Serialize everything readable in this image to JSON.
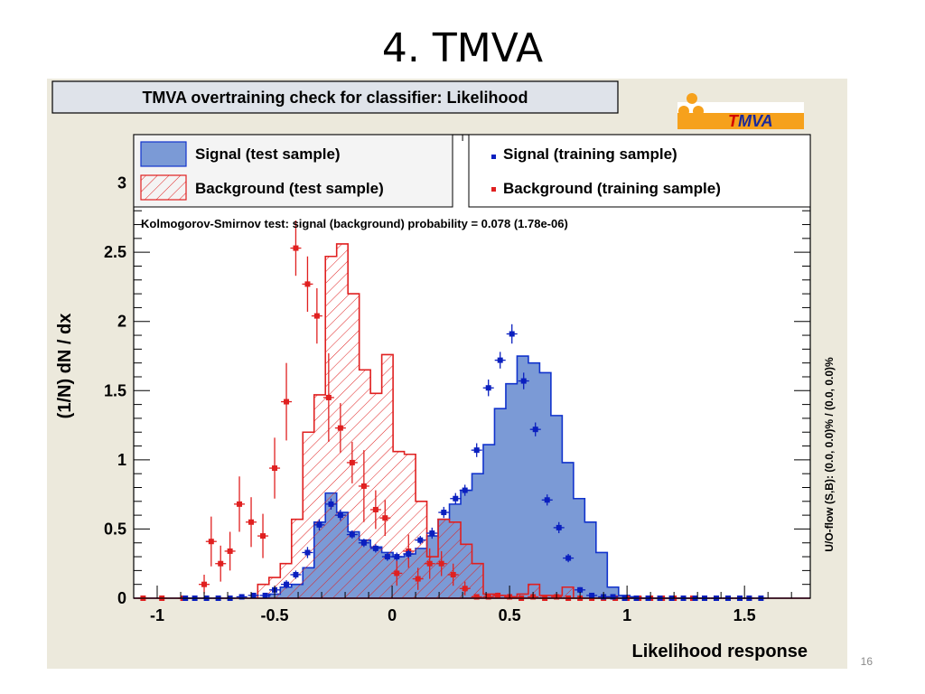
{
  "slide": {
    "title": "4. TMVA",
    "page_number": "16"
  },
  "logo": {
    "text_t": "T",
    "text_rest": "MVA"
  },
  "colors": {
    "signal_fill": "#7b9ad6",
    "signal_line": "#1133cc",
    "signal_dots": "#0a1fbf",
    "background": "#e02020",
    "panel": "#ece9dc"
  },
  "chart_data": {
    "type": "histogram",
    "title": "TMVA overtraining check for classifier: Likelihood",
    "xlabel": "Likelihood response",
    "ylabel": "(1/N) dN / dx",
    "right_label": "U/O-flow (S,B): (0.0, 0.0)% / (0.0, 0.0)%",
    "ks_text": "Kolmogorov-Smirnov test: signal (background) probability = 0.078 (1.78e-06)",
    "xlim": [
      -1.1,
      1.78
    ],
    "ylim": [
      0,
      3.35
    ],
    "xticks": [
      "-1",
      "-0.5",
      "0",
      "0.5",
      "1",
      "1.5"
    ],
    "yticks": [
      "0",
      "0.5",
      "1",
      "1.5",
      "2",
      "2.5",
      "3"
    ],
    "legend": {
      "signal_test": "Signal (test sample)",
      "background_test": "Background (test sample)",
      "signal_train": "Signal (training sample)",
      "background_train": "Background (training sample)"
    },
    "bin_edges": [
      -1.1,
      -1.052,
      -1.004,
      -0.956,
      -0.908,
      -0.86,
      -0.812,
      -0.764,
      -0.716,
      -0.668,
      -0.62,
      -0.572,
      -0.524,
      -0.476,
      -0.428,
      -0.38,
      -0.332,
      -0.284,
      -0.236,
      -0.188,
      -0.14,
      -0.092,
      -0.044,
      0.004,
      0.052,
      0.1,
      0.148,
      0.196,
      0.244,
      0.292,
      0.34,
      0.388,
      0.436,
      0.484,
      0.532,
      0.58,
      0.628,
      0.676,
      0.724,
      0.772,
      0.82,
      0.868,
      0.916,
      0.964,
      1.012,
      1.06,
      1.108,
      1.156,
      1.204,
      1.252,
      1.3,
      1.348,
      1.396,
      1.444,
      1.492,
      1.54,
      1.588,
      1.636,
      1.684,
      1.732,
      1.78
    ],
    "signal_test": [
      0,
      0,
      0,
      0,
      0,
      0,
      0,
      0,
      0,
      0,
      0,
      0,
      0.03,
      0.08,
      0.1,
      0.22,
      0.55,
      0.76,
      0.62,
      0.48,
      0.42,
      0.37,
      0.33,
      0.3,
      0.32,
      0.36,
      0.45,
      0.57,
      0.68,
      0.78,
      0.9,
      1.11,
      1.37,
      1.55,
      1.75,
      1.7,
      1.63,
      1.32,
      0.98,
      0.72,
      0.55,
      0.33,
      0.08,
      0.02,
      0.01,
      0,
      0,
      0,
      0,
      0,
      0,
      0,
      0,
      0,
      0,
      0,
      0,
      0,
      0,
      0
    ],
    "background_test": [
      0,
      0,
      0,
      0,
      0,
      0,
      0,
      0,
      0,
      0,
      0,
      0.1,
      0.15,
      0.25,
      0.57,
      1.2,
      1.47,
      2.47,
      2.56,
      2.2,
      1.65,
      1.48,
      1.76,
      1.06,
      1.04,
      0.7,
      0.3,
      0.57,
      0.55,
      0.39,
      0.25,
      0.03,
      0.02,
      0.01,
      0.03,
      0.1,
      0.02,
      0.02,
      0.08,
      0,
      0,
      0,
      0,
      0,
      0,
      0,
      0,
      0,
      0,
      0,
      0,
      0,
      0,
      0,
      0,
      0,
      0,
      0,
      0,
      0
    ],
    "signal_train": {
      "x": [
        -0.88,
        -0.84,
        -0.79,
        -0.74,
        -0.69,
        -0.64,
        -0.59,
        -0.54,
        -0.5,
        -0.45,
        -0.41,
        -0.36,
        -0.31,
        -0.26,
        -0.22,
        -0.17,
        -0.12,
        -0.07,
        -0.02,
        0.02,
        0.07,
        0.12,
        0.17,
        0.22,
        0.27,
        0.31,
        0.36,
        0.41,
        0.46,
        0.51,
        0.56,
        0.61,
        0.66,
        0.71,
        0.75,
        0.8,
        0.85,
        0.9,
        0.94,
        0.99,
        1.04,
        1.09,
        1.14,
        1.19,
        1.24,
        1.29,
        1.33,
        1.38,
        1.43,
        1.48,
        1.52,
        1.57
      ],
      "y": [
        0,
        0,
        0,
        0,
        0,
        0.01,
        0.02,
        0.02,
        0.06,
        0.1,
        0.17,
        0.33,
        0.53,
        0.68,
        0.6,
        0.46,
        0.4,
        0.36,
        0.3,
        0.3,
        0.32,
        0.42,
        0.47,
        0.62,
        0.72,
        0.78,
        1.07,
        1.52,
        1.72,
        1.91,
        1.57,
        1.22,
        0.71,
        0.51,
        0.29,
        0.06,
        0.02,
        0.01,
        0.01,
        0,
        0,
        0,
        0,
        0,
        0,
        0,
        0,
        0,
        0,
        0,
        0,
        0
      ],
      "yerr": [
        0,
        0,
        0,
        0,
        0,
        0.01,
        0.01,
        0.01,
        0.02,
        0.03,
        0.03,
        0.04,
        0.04,
        0.04,
        0.04,
        0.03,
        0.03,
        0.03,
        0.03,
        0.03,
        0.03,
        0.03,
        0.04,
        0.04,
        0.04,
        0.04,
        0.05,
        0.06,
        0.06,
        0.07,
        0.06,
        0.05,
        0.04,
        0.04,
        0.03,
        0.02,
        0.01,
        0.01,
        0.01,
        0,
        0,
        0,
        0,
        0,
        0,
        0,
        0,
        0,
        0,
        0,
        0,
        0
      ]
    },
    "background_train": {
      "x": [
        -1.06,
        -0.98,
        -0.89,
        -0.8,
        -0.77,
        -0.73,
        -0.69,
        -0.65,
        -0.6,
        -0.55,
        -0.5,
        -0.45,
        -0.41,
        -0.36,
        -0.32,
        -0.27,
        -0.22,
        -0.17,
        -0.12,
        -0.07,
        -0.03,
        0.02,
        0.07,
        0.11,
        0.16,
        0.21,
        0.26,
        0.31,
        0.36,
        0.41,
        0.45,
        0.5,
        0.55,
        0.6,
        0.65,
        0.7,
        0.75,
        0.8,
        0.85,
        0.9,
        0.95,
        1.0,
        1.05,
        1.1,
        1.15,
        1.2,
        1.28,
        1.33,
        1.38,
        1.43,
        1.48,
        1.52
      ],
      "y": [
        0,
        0,
        0,
        0.1,
        0.41,
        0.25,
        0.34,
        0.68,
        0.55,
        0.45,
        0.94,
        1.42,
        2.53,
        2.27,
        2.04,
        1.45,
        1.23,
        0.98,
        0.81,
        0.64,
        0.58,
        0.18,
        0.34,
        0.14,
        0.25,
        0.25,
        0.17,
        0.07,
        0.01,
        0.01,
        0.02,
        0.01,
        0.0,
        0.01,
        0.0,
        0.01,
        0.0,
        0.0,
        0.0,
        0.0,
        0.0,
        0.0,
        0.0,
        0.0,
        0.0,
        0.0,
        0.0,
        0.0,
        0.0,
        0.0,
        0.0,
        0.0
      ],
      "yerr": [
        0,
        0,
        0,
        0.07,
        0.18,
        0.13,
        0.14,
        0.2,
        0.18,
        0.16,
        0.22,
        0.28,
        0.2,
        0.2,
        0.2,
        0.32,
        0.18,
        0.15,
        0.26,
        0.14,
        0.13,
        0.09,
        0.12,
        0.08,
        0.11,
        0.09,
        0.08,
        0.05,
        0.01,
        0.01,
        0.02,
        0.01,
        0,
        0.01,
        0,
        0.01,
        0,
        0,
        0,
        0,
        0,
        0,
        0,
        0,
        0,
        0,
        0,
        0,
        0,
        0,
        0,
        0
      ]
    }
  }
}
